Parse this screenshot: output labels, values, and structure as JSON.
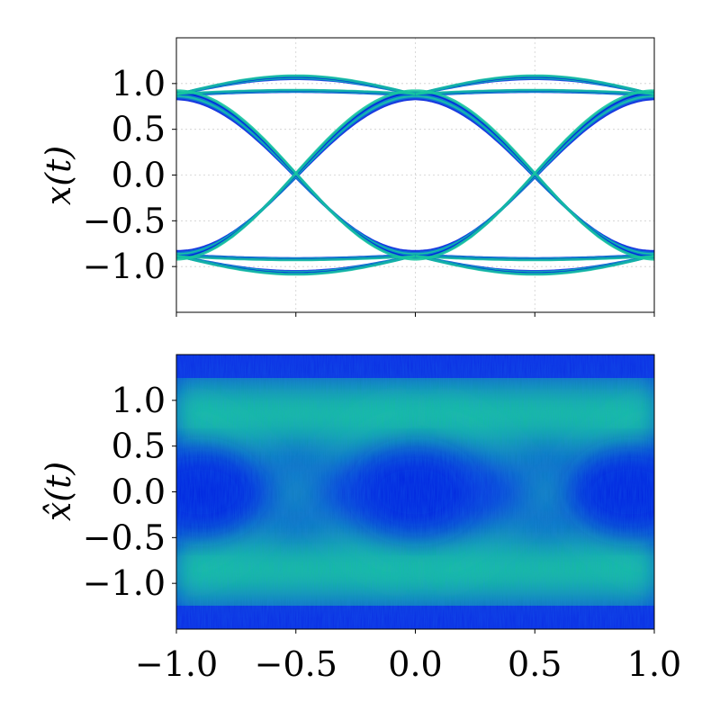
{
  "chart_data": [
    {
      "type": "scatter",
      "subtype": "eye-diagram",
      "title": "",
      "xlabel": "",
      "ylabel": "x(t)",
      "xlim": [
        -1.0,
        1.0
      ],
      "ylim": [
        -1.5,
        1.5
      ],
      "xticks": [
        -1.0,
        -0.5,
        0.0,
        0.5,
        1.0
      ],
      "show_xtick_labels": false,
      "yticks": [
        -1.0,
        -0.5,
        0.0,
        0.5,
        1.0
      ],
      "ytick_labels": [
        "−1.0",
        "−0.5",
        "0.0",
        "0.5",
        "1.0"
      ],
      "grid": true,
      "colormap": [
        "#0022dd",
        "#0a7fd0",
        "#16c7a0"
      ],
      "eye_levels": [
        -0.88,
        0.88
      ],
      "overshoot_peak": 1.07,
      "crossings_x": [
        -0.5,
        0.5
      ],
      "node_x": [
        -1.0,
        0.0,
        1.0
      ]
    },
    {
      "type": "heatmap",
      "subtype": "eye-diagram",
      "title": "",
      "xlabel": "",
      "ylabel": "x̂(t)",
      "xlim": [
        -1.0,
        1.0
      ],
      "ylim": [
        -1.5,
        1.5
      ],
      "xticks": [
        -1.0,
        -0.5,
        0.0,
        0.5,
        1.0
      ],
      "xtick_labels": [
        "−1.0",
        "−0.5",
        "0.0",
        "0.5",
        "1.0"
      ],
      "yticks": [
        -1.0,
        -0.5,
        0.0,
        0.5,
        1.0
      ],
      "ytick_labels": [
        "−1.0",
        "−0.5",
        "0.0",
        "0.5",
        "1.0"
      ],
      "grid": false,
      "colormap": [
        "#0022dd",
        "#0a7fd0",
        "#16c7a0",
        "#1ee08a"
      ],
      "bright_bands_y": [
        -0.85,
        0.85
      ],
      "eye_centers_x": [
        -0.9,
        0.0,
        0.9
      ],
      "crossings_x": [
        -0.5,
        0.55
      ]
    }
  ]
}
